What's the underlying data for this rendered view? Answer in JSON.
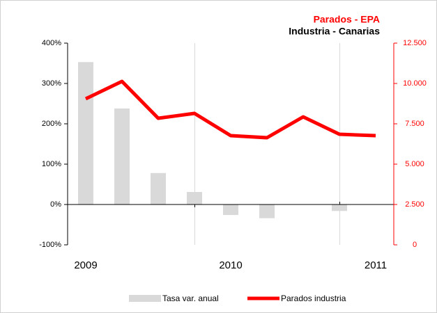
{
  "chart_data": {
    "type": "bar_line",
    "title": "Parados - EPA",
    "subtitle": "Industria - Canarias",
    "categories": [
      "2009",
      null,
      null,
      null,
      "2010",
      null,
      null,
      null,
      "2011"
    ],
    "series": [
      {
        "name": "Tasa var. anual",
        "type": "bar",
        "color": "#d9d9d9",
        "axis": "y",
        "values": [
          353,
          238,
          78,
          31,
          -26,
          -34,
          0,
          -16,
          0
        ]
      },
      {
        "name": "Parados industria",
        "type": "line",
        "color": "#ff0000",
        "axis": "y2",
        "values": [
          9050,
          10130,
          7845,
          8147,
          6767,
          6638,
          7931,
          6853,
          6767
        ]
      }
    ],
    "ylim": [
      -100,
      400
    ],
    "yticks": [
      {
        "value": -100,
        "label": "-100%"
      },
      {
        "value": 0,
        "label": "0%"
      },
      {
        "value": 100,
        "label": "100%"
      },
      {
        "value": 200,
        "label": "200%"
      },
      {
        "value": 300,
        "label": "300%"
      },
      {
        "value": 400,
        "label": "400%"
      }
    ],
    "y2lim": [
      0,
      12500
    ],
    "y2ticks": [
      0,
      {
        "value": 2500,
        "label": "2.500"
      },
      {
        "value": 5000,
        "label": "5.000"
      },
      {
        "value": 7500,
        "label": "7.500"
      },
      {
        "value": 10000,
        "label": "10.000"
      },
      {
        "value": 12500,
        "label": "12.500"
      }
    ],
    "y2color": "#ff0000",
    "legend": "bottom"
  }
}
